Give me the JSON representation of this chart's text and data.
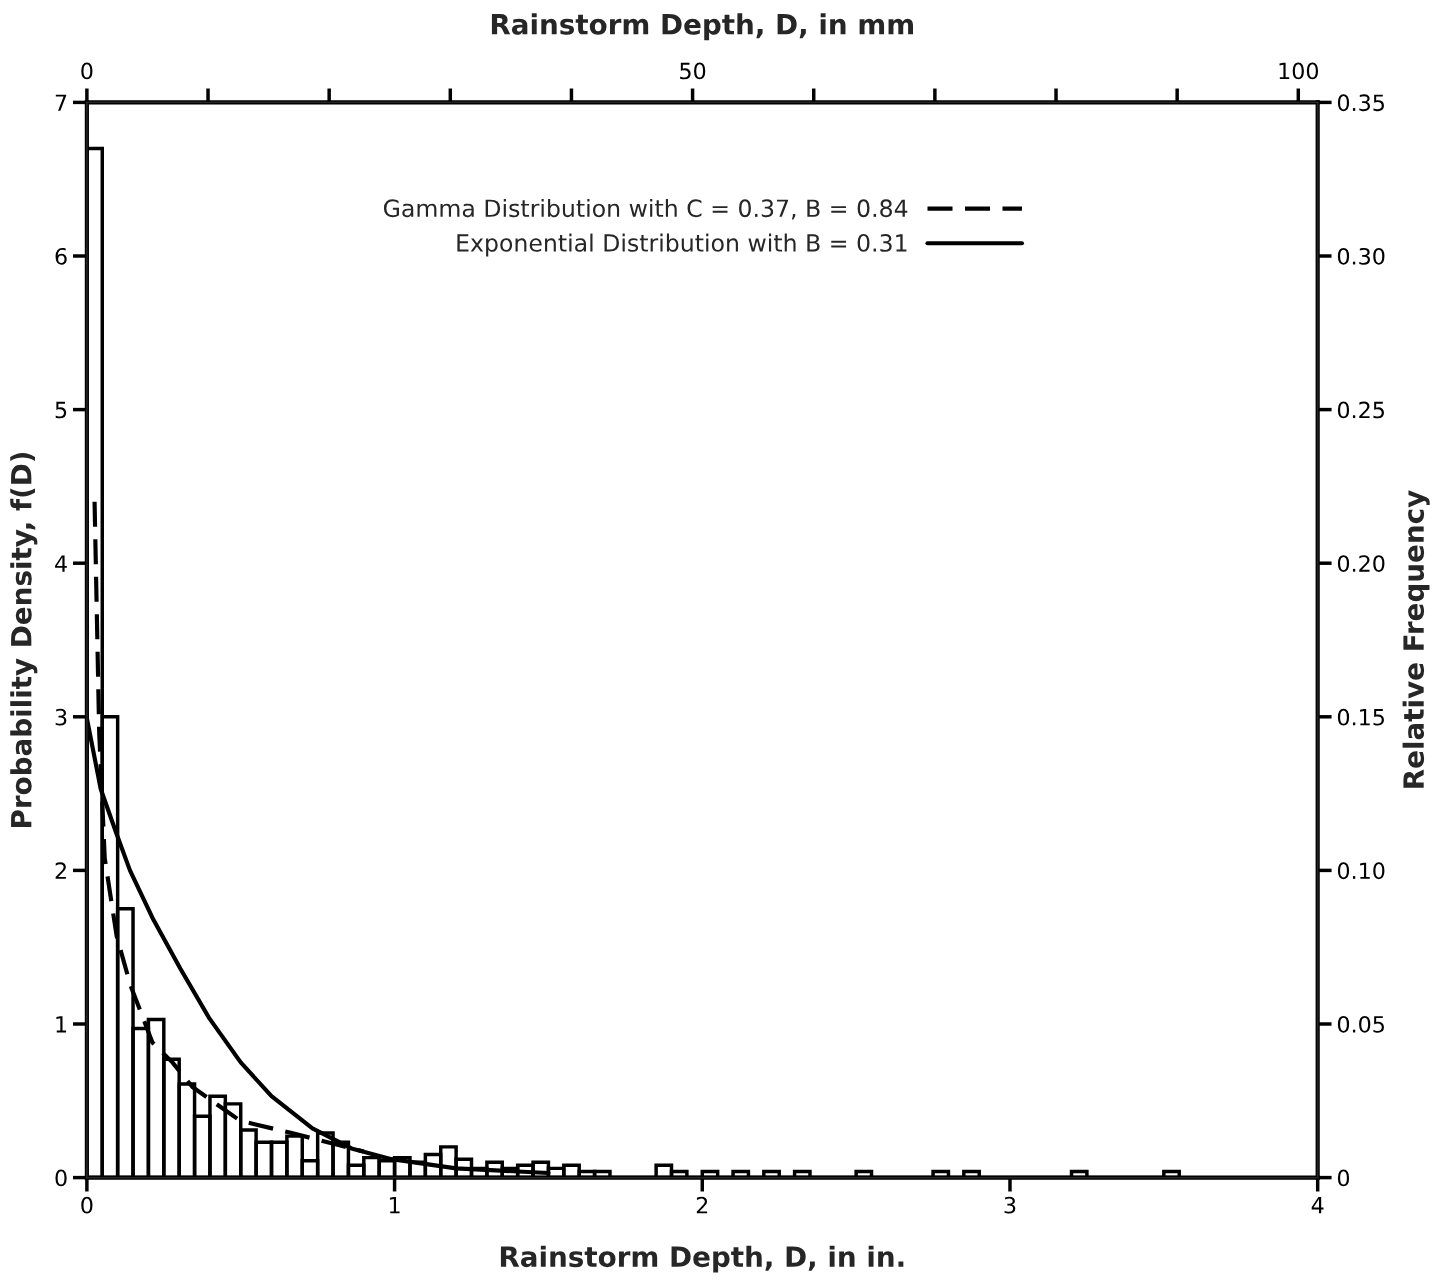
{
  "chart_data": {
    "type": "histogram",
    "xlabel": "Rainstorm Depth, D, in in.",
    "ylabel": "Probability Density, f(D)",
    "y2label": "Relative Frequency",
    "x2label": "Rainstorm Depth, D, in mm",
    "bins": [
      0,
      0.05,
      0.1,
      0.15,
      0.2,
      0.25,
      0.3,
      0.35,
      0.4,
      0.45,
      0.5,
      0.55,
      0.6,
      0.65,
      0.7,
      0.75,
      0.8,
      0.85,
      0.9,
      0.95,
      1.0,
      1.05,
      1.1,
      1.15,
      1.2,
      1.25,
      1.3,
      1.35,
      1.4,
      1.45,
      1.5,
      1.55,
      1.6,
      1.65,
      1.7,
      1.75,
      1.8,
      1.85,
      1.9,
      1.95,
      2.0,
      2.05,
      2.1,
      2.15,
      2.2,
      2.25,
      2.3,
      2.35,
      2.4,
      2.45,
      2.5,
      2.55,
      2.6,
      2.65,
      2.7,
      2.75,
      2.8,
      2.85,
      2.9,
      2.95,
      3.0,
      3.05,
      3.1,
      3.15,
      3.2,
      3.25,
      3.3,
      3.35,
      3.4,
      3.45,
      3.5,
      3.55
    ],
    "values": [
      6.7,
      3.0,
      1.75,
      0.97,
      1.03,
      0.77,
      0.61,
      0.4,
      0.53,
      0.48,
      0.31,
      0.23,
      0.23,
      0.27,
      0.11,
      0.29,
      0.23,
      0.08,
      0.13,
      0.11,
      0.13,
      0.1,
      0.15,
      0.2,
      0.12,
      0.06,
      0.1,
      0.06,
      0.08,
      0.1,
      0.06,
      0.08,
      0.04,
      0.04,
      0,
      0,
      0,
      0.08,
      0.04,
      0,
      0.04,
      0,
      0.04,
      0,
      0.04,
      0,
      0.04,
      0,
      0,
      0,
      0.04,
      0,
      0,
      0,
      0,
      0.04,
      0,
      0.04,
      0,
      0,
      0,
      0,
      0,
      0,
      0.04,
      0,
      0,
      0,
      0,
      0,
      0.04
    ],
    "color": "#000000",
    "series": [
      {
        "name": "Gamma Distribution with C = 0.37, B = 0.84",
        "type": "line",
        "line_style": "dashed",
        "color": "#000000",
        "x": [
          0.025,
          0.04,
          0.058,
          0.097,
          0.142,
          0.213,
          0.278,
          0.343,
          0.498,
          0.666,
          0.821,
          0.9
        ],
        "values": [
          4.4,
          2.9,
          2.08,
          1.57,
          1.25,
          0.88,
          0.75,
          0.59,
          0.37,
          0.29,
          0.21,
          0.17
        ]
      },
      {
        "name": "Exponential Distribution with B = 0.31",
        "type": "line",
        "line_style": "solid",
        "color": "#000000",
        "x": [
          0,
          0.045,
          0.096,
          0.14,
          0.216,
          0.304,
          0.397,
          0.5,
          0.6,
          0.733,
          0.86,
          0.99,
          1.2,
          1.5
        ],
        "values": [
          2.99,
          2.53,
          2.24,
          2.0,
          1.68,
          1.36,
          1.04,
          0.75,
          0.53,
          0.32,
          0.19,
          0.12,
          0.06,
          0.03
        ]
      }
    ],
    "xlim": [
      0,
      4
    ],
    "xticks": [
      0,
      1,
      2,
      3,
      4
    ],
    "ylim": [
      0,
      7
    ],
    "yticks": [
      0,
      1,
      2,
      3,
      4,
      5,
      6,
      7
    ],
    "y2lim": [
      0,
      0.35
    ],
    "y2ticks": [
      0,
      {
        "value": 0.05,
        "label": "0.05"
      },
      {
        "value": 0.1,
        "label": "0.10"
      },
      {
        "value": 0.15,
        "label": "0.15"
      },
      {
        "value": 0.2,
        "label": "0.20"
      },
      {
        "value": 0.25,
        "label": "0.25"
      },
      {
        "value": 0.3,
        "label": "0.30"
      },
      {
        "value": 0.35,
        "label": "0.35"
      }
    ],
    "x2lim": [
      0,
      101.6
    ],
    "x2ticks": [
      0,
      {
        "value": 10,
        "label": null
      },
      {
        "value": 20,
        "label": null
      },
      {
        "value": 30,
        "label": null
      },
      {
        "value": 40,
        "label": null
      },
      50,
      {
        "value": 60,
        "label": null
      },
      {
        "value": 70,
        "label": null
      },
      {
        "value": 80,
        "label": null
      },
      {
        "value": 90,
        "label": null
      },
      100
    ],
    "legend": "top",
    "grid": false,
    "marker": "none"
  }
}
